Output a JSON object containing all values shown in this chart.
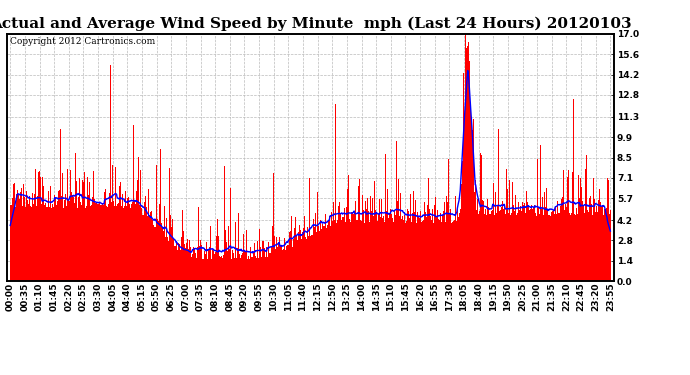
{
  "title": "Actual and Average Wind Speed by Minute  mph (Last 24 Hours) 20120103",
  "copyright_text": "Copyright 2012 Cartronics.com",
  "yticks": [
    0.0,
    1.4,
    2.8,
    4.2,
    5.7,
    7.1,
    8.5,
    9.9,
    11.3,
    12.8,
    14.2,
    15.6,
    17.0
  ],
  "ylim": [
    0.0,
    17.0
  ],
  "bar_color": "#ff0000",
  "line_color": "#0000ff",
  "bg_color": "#ffffff",
  "grid_color": "#bbbbbb",
  "title_fontsize": 11,
  "copyright_fontsize": 6.5,
  "tick_label_fontsize": 6.5,
  "n_minutes": 1440,
  "xtick_labels": [
    "00:00",
    "00:35",
    "01:10",
    "01:45",
    "02:20",
    "02:55",
    "03:30",
    "04:05",
    "04:40",
    "05:15",
    "05:50",
    "06:25",
    "07:00",
    "07:35",
    "08:10",
    "08:45",
    "09:20",
    "09:55",
    "10:30",
    "11:05",
    "11:40",
    "12:15",
    "12:50",
    "13:25",
    "14:00",
    "14:35",
    "15:10",
    "15:45",
    "16:20",
    "16:55",
    "17:30",
    "18:05",
    "18:40",
    "19:15",
    "19:50",
    "20:25",
    "21:00",
    "21:35",
    "22:10",
    "22:45",
    "23:20",
    "23:55"
  ]
}
